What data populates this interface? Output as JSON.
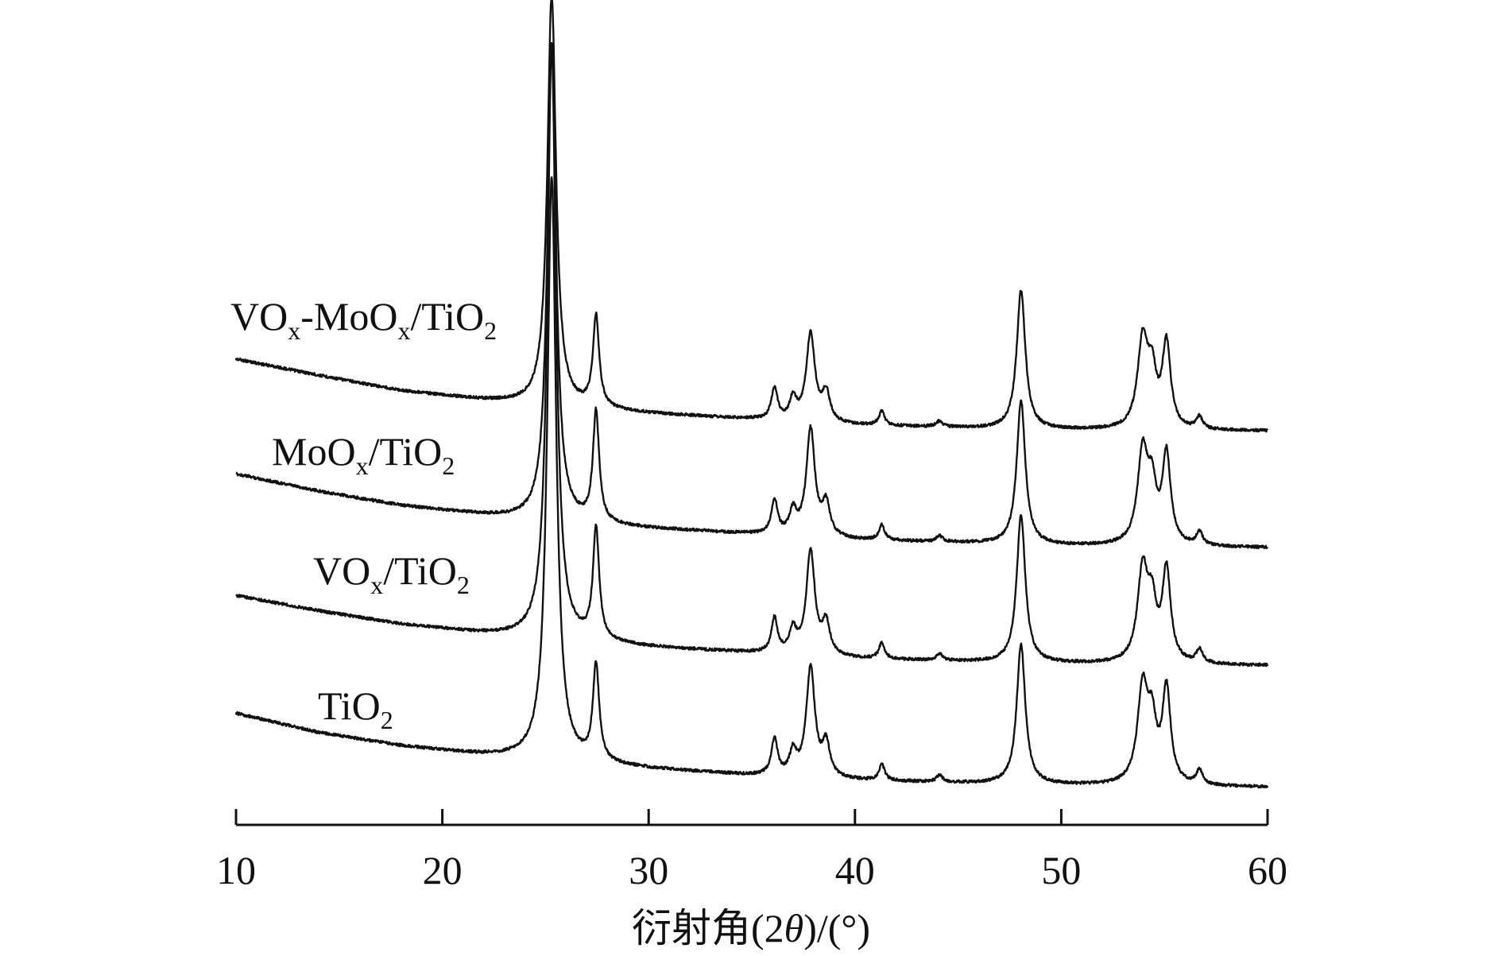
{
  "chart_data": {
    "type": "line",
    "title": "",
    "xlabel": "衍射角(2θ)/(°)",
    "xlabel_parts": {
      "pre": "衍射角(2",
      "theta": "θ",
      "post": ")/(°)"
    },
    "ylabel": "",
    "xlim": [
      10,
      60
    ],
    "x_ticks": [
      10,
      20,
      30,
      40,
      50,
      60
    ],
    "y_axis_visible": false,
    "grid": false,
    "legend": "none",
    "line_color": "#111111",
    "series": [
      {
        "label_parts": [
          {
            "text": "VO",
            "sub": false
          },
          {
            "text": "x",
            "sub": true
          },
          {
            "text": "-MoO",
            "sub": false
          },
          {
            "text": "x",
            "sub": true
          },
          {
            "text": "/TiO",
            "sub": false
          },
          {
            "text": "2",
            "sub": true
          }
        ],
        "baseline": [
          [
            10,
            375
          ],
          [
            14,
            392
          ],
          [
            18,
            408
          ],
          [
            22,
            418
          ],
          [
            25,
            424
          ],
          [
            30,
            432
          ],
          [
            35,
            438
          ],
          [
            40,
            444
          ],
          [
            45,
            447
          ],
          [
            50,
            449
          ],
          [
            55,
            450
          ],
          [
            60,
            450
          ]
        ],
        "peaks": [
          {
            "x": 25.3,
            "height": 430,
            "width": 0.25
          },
          {
            "x": 27.45,
            "height": 95,
            "width": 0.18
          },
          {
            "x": 36.1,
            "height": 33,
            "width": 0.18
          },
          {
            "x": 37.0,
            "height": 22,
            "width": 0.2
          },
          {
            "x": 37.85,
            "height": 92,
            "width": 0.25
          },
          {
            "x": 38.6,
            "height": 30,
            "width": 0.22
          },
          {
            "x": 41.3,
            "height": 15,
            "width": 0.16
          },
          {
            "x": 44.1,
            "height": 6,
            "width": 0.18
          },
          {
            "x": 48.05,
            "height": 145,
            "width": 0.25
          },
          {
            "x": 53.95,
            "height": 92,
            "width": 0.3
          },
          {
            "x": 54.4,
            "height": 50,
            "width": 0.25
          },
          {
            "x": 55.1,
            "height": 88,
            "width": 0.24
          },
          {
            "x": 56.7,
            "height": 13,
            "width": 0.18
          }
        ]
      },
      {
        "label_parts": [
          {
            "text": "MoO",
            "sub": false
          },
          {
            "text": "x",
            "sub": true
          },
          {
            "text": "/TiO",
            "sub": false
          },
          {
            "text": "2",
            "sub": true
          }
        ],
        "baseline": [
          [
            10,
            495
          ],
          [
            14,
            513
          ],
          [
            18,
            528
          ],
          [
            22,
            538
          ],
          [
            25,
            545
          ],
          [
            30,
            552
          ],
          [
            35,
            558
          ],
          [
            40,
            564
          ],
          [
            45,
            567
          ],
          [
            50,
            570
          ],
          [
            55,
            571
          ],
          [
            60,
            572
          ]
        ],
        "peaks": [
          {
            "x": 25.3,
            "height": 500,
            "width": 0.25
          },
          {
            "x": 27.45,
            "height": 115,
            "width": 0.18
          },
          {
            "x": 36.1,
            "height": 36,
            "width": 0.18
          },
          {
            "x": 37.0,
            "height": 24,
            "width": 0.2
          },
          {
            "x": 37.85,
            "height": 112,
            "width": 0.25
          },
          {
            "x": 38.6,
            "height": 33,
            "width": 0.22
          },
          {
            "x": 41.3,
            "height": 16,
            "width": 0.16
          },
          {
            "x": 44.1,
            "height": 6,
            "width": 0.18
          },
          {
            "x": 48.05,
            "height": 150,
            "width": 0.25
          },
          {
            "x": 53.95,
            "height": 96,
            "width": 0.3
          },
          {
            "x": 54.4,
            "height": 52,
            "width": 0.25
          },
          {
            "x": 55.1,
            "height": 93,
            "width": 0.24
          },
          {
            "x": 56.7,
            "height": 14,
            "width": 0.18
          }
        ]
      },
      {
        "label_parts": [
          {
            "text": "VO",
            "sub": false
          },
          {
            "text": "x",
            "sub": true
          },
          {
            "text": "/TiO",
            "sub": false
          },
          {
            "text": "2",
            "sub": true
          }
        ],
        "baseline": [
          [
            10,
            622
          ],
          [
            14,
            638
          ],
          [
            18,
            652
          ],
          [
            22,
            662
          ],
          [
            25,
            668
          ],
          [
            30,
            676
          ],
          [
            35,
            682
          ],
          [
            40,
            688
          ],
          [
            45,
            691
          ],
          [
            50,
            693
          ],
          [
            55,
            694
          ],
          [
            60,
            695
          ]
        ],
        "peaks": [
          {
            "x": 25.3,
            "height": 620,
            "width": 0.25
          },
          {
            "x": 27.45,
            "height": 115,
            "width": 0.18
          },
          {
            "x": 36.1,
            "height": 36,
            "width": 0.18
          },
          {
            "x": 37.0,
            "height": 24,
            "width": 0.2
          },
          {
            "x": 37.85,
            "height": 108,
            "width": 0.25
          },
          {
            "x": 38.6,
            "height": 33,
            "width": 0.22
          },
          {
            "x": 41.3,
            "height": 17,
            "width": 0.16
          },
          {
            "x": 44.1,
            "height": 7,
            "width": 0.18
          },
          {
            "x": 48.05,
            "height": 154,
            "width": 0.25
          },
          {
            "x": 53.95,
            "height": 96,
            "width": 0.3
          },
          {
            "x": 54.4,
            "height": 52,
            "width": 0.25
          },
          {
            "x": 55.1,
            "height": 96,
            "width": 0.24
          },
          {
            "x": 56.7,
            "height": 14,
            "width": 0.18
          }
        ]
      },
      {
        "label_parts": [
          {
            "text": "TiO",
            "sub": false
          },
          {
            "text": "2",
            "sub": true
          }
        ],
        "baseline": [
          [
            10,
            745
          ],
          [
            14,
            765
          ],
          [
            18,
            779
          ],
          [
            22,
            789
          ],
          [
            25,
            795
          ],
          [
            30,
            803
          ],
          [
            35,
            810
          ],
          [
            40,
            815
          ],
          [
            45,
            818
          ],
          [
            50,
            820
          ],
          [
            55,
            821
          ],
          [
            60,
            822
          ]
        ],
        "peaks": [
          {
            "x": 25.3,
            "height": 610,
            "width": 0.26
          },
          {
            "x": 27.45,
            "height": 100,
            "width": 0.18
          },
          {
            "x": 36.1,
            "height": 38,
            "width": 0.18
          },
          {
            "x": 37.0,
            "height": 24,
            "width": 0.2
          },
          {
            "x": 37.85,
            "height": 114,
            "width": 0.25
          },
          {
            "x": 38.6,
            "height": 34,
            "width": 0.22
          },
          {
            "x": 41.3,
            "height": 17,
            "width": 0.16
          },
          {
            "x": 44.1,
            "height": 7,
            "width": 0.18
          },
          {
            "x": 48.05,
            "height": 146,
            "width": 0.25
          },
          {
            "x": 53.95,
            "height": 100,
            "width": 0.3
          },
          {
            "x": 54.4,
            "height": 55,
            "width": 0.25
          },
          {
            "x": 55.1,
            "height": 98,
            "width": 0.24
          },
          {
            "x": 56.7,
            "height": 15,
            "width": 0.18
          }
        ]
      }
    ]
  }
}
